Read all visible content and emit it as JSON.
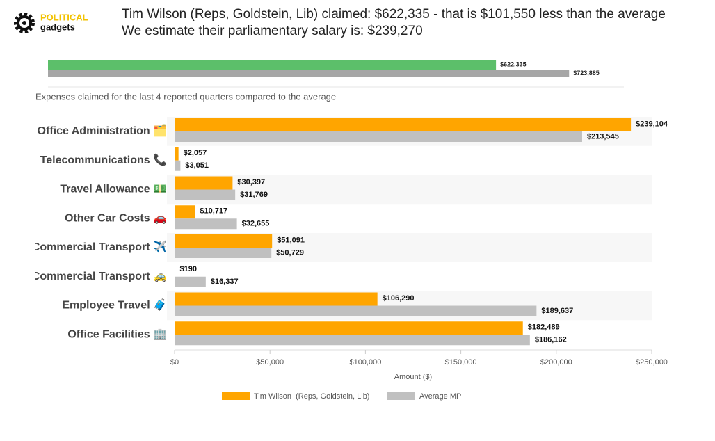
{
  "logo": {
    "line1": "POLITICAL",
    "line2": "gadgets"
  },
  "header": {
    "line1": "Tim Wilson (Reps, Goldstein, Lib) claimed: $622,335 - that is $101,550 less than the average",
    "line2": "We estimate their parliamentary salary is: $239,270"
  },
  "chart_data": [
    {
      "type": "bar",
      "orientation": "horizontal",
      "values": [
        622335,
        723885
      ],
      "value_labels": [
        "$622,335",
        "$723,885"
      ],
      "colors": [
        "#5cbf6a",
        "#a6a6a6"
      ],
      "xlim": [
        0,
        800000
      ]
    },
    {
      "type": "bar",
      "orientation": "horizontal",
      "title": "Expenses claimed for the last 4 reported quarters compared to the average",
      "categories": [
        "Office Administration 🗂️",
        "Telecommunications 📞",
        "Travel Allowance 💵",
        "Other Car Costs 🚗",
        "Commercial Transport ✈️",
        "Commercial Transport 🚕",
        "Employee Travel 🧳",
        "Office Facilities 🏢"
      ],
      "series": [
        {
          "name": "Tim Wilson  (Reps, Goldstein, Lib)",
          "color": "#ffa500",
          "values": [
            239104,
            2057,
            30397,
            10717,
            51091,
            190,
            106290,
            182489
          ],
          "value_labels": [
            "$239,104",
            "$2,057",
            "$30,397",
            "$10,717",
            "$51,091",
            "$190",
            "$106,290",
            "$182,489"
          ]
        },
        {
          "name": "Average MP",
          "color": "#c0c0c0",
          "values": [
            213545,
            3051,
            31769,
            32655,
            50729,
            16337,
            189637,
            186162
          ],
          "value_labels": [
            "$213,545",
            "$3,051",
            "$31,769",
            "$32,655",
            "$50,729",
            "$16,337",
            "$189,637",
            "$186,162"
          ]
        }
      ],
      "xlim": [
        0,
        250000
      ],
      "xticks": [
        {
          "value": 0,
          "label": "$0"
        },
        {
          "value": 50000,
          "label": "$50,000"
        },
        {
          "value": 100000,
          "label": "$100,000"
        },
        {
          "value": 150000,
          "label": "$150,000"
        },
        {
          "value": 200000,
          "label": "$200,000"
        },
        {
          "value": 250000,
          "label": "$250,000"
        }
      ],
      "xlabel": "Amount ($)",
      "striped_rows": true,
      "legend": "bottom"
    }
  ]
}
